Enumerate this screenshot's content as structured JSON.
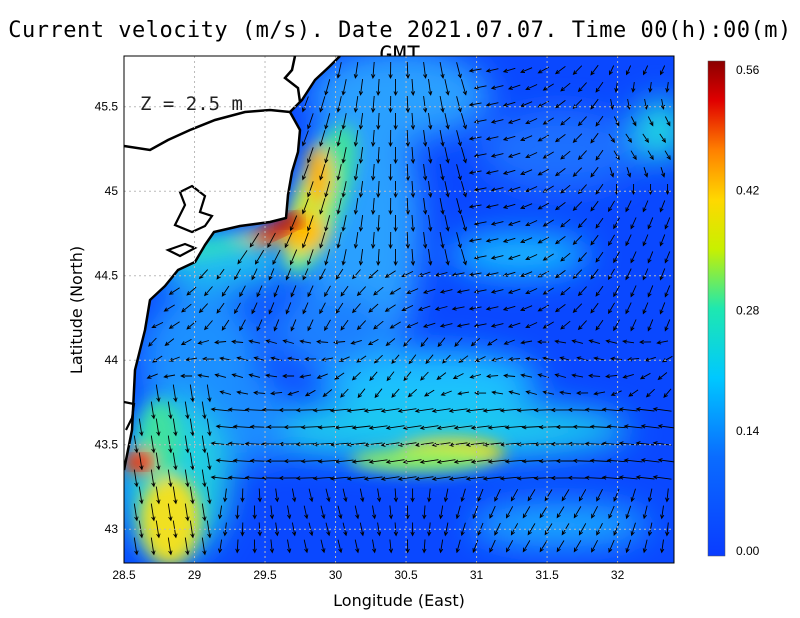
{
  "title": "Current velocity (m/s). Date 2021.07.07. Time 00(h):00(m) GMT",
  "depth_label": "Z = 2.5 m",
  "axes": {
    "xlabel": "Longitude (East)",
    "ylabel": "Latitude (North)",
    "xlim": [
      28.5,
      32.4
    ],
    "ylim": [
      42.8,
      45.8
    ],
    "xticks": [
      "28.5",
      "29",
      "29.5",
      "30",
      "30.5",
      "31",
      "31.5",
      "32"
    ],
    "yticks": [
      "43",
      "43.5",
      "44",
      "44.5",
      "45",
      "45.5"
    ]
  },
  "colorbar": {
    "ticks": [
      "0.00",
      "0.14",
      "0.28",
      "0.42",
      "0.56"
    ],
    "range": [
      0,
      0.56
    ],
    "colors": [
      "#0a3cff",
      "#00aaff",
      "#00e6e6",
      "#ffe000",
      "#ff7a00",
      "#e60000",
      "#8b0000"
    ]
  },
  "land_color": "#ffffff",
  "coast_color": "#000000",
  "chart_data": {
    "type": "heatmap",
    "title": "Current velocity (m/s). Date 2021.07.07. Time 00(h):00(m) GMT",
    "xlabel": "Longitude (East)",
    "ylabel": "Latitude (North)",
    "xlim": [
      28.5,
      32.4
    ],
    "ylim": [
      42.8,
      45.8
    ],
    "colorbar_range": [
      0,
      0.56
    ],
    "grid": true,
    "hotspots": [
      {
        "lon": 29.6,
        "lat": 44.78,
        "speed": 0.56
      },
      {
        "lon": 29.8,
        "lat": 45.1,
        "speed": 0.48
      },
      {
        "lon": 28.6,
        "lat": 43.38,
        "speed": 0.5
      },
      {
        "lon": 28.8,
        "lat": 42.95,
        "speed": 0.4
      },
      {
        "lon": 30.8,
        "lat": 43.45,
        "speed": 0.32
      }
    ]
  }
}
